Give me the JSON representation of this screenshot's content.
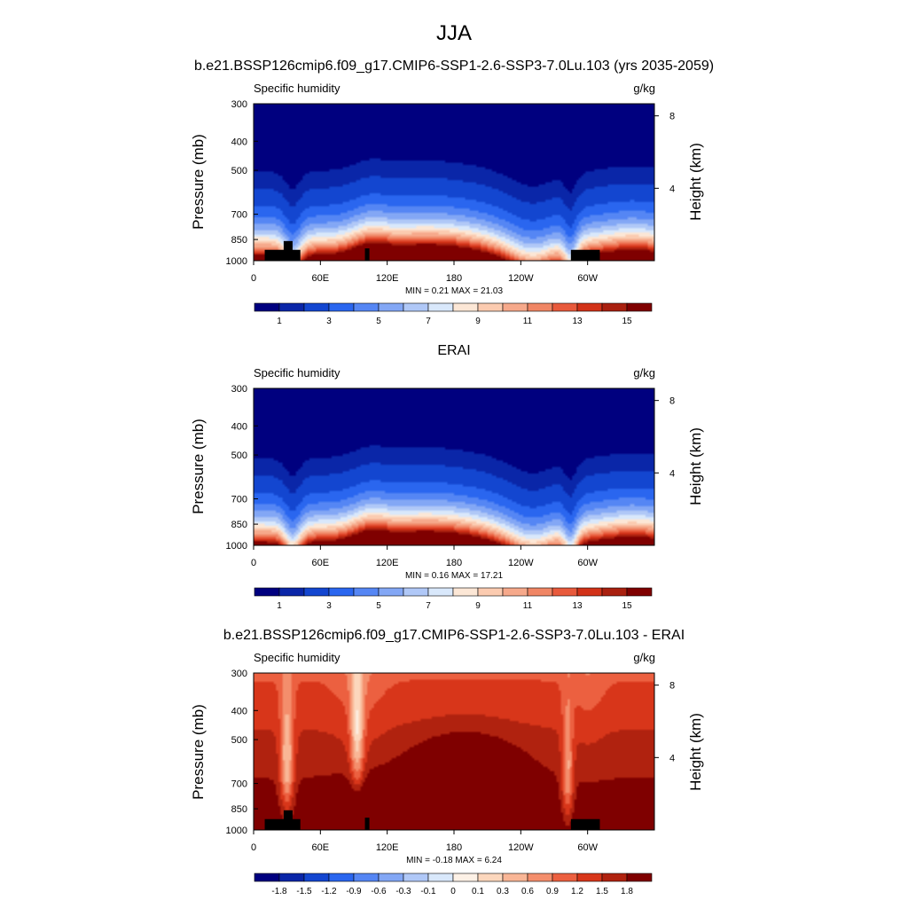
{
  "page": {
    "title": "JJA"
  },
  "colors": {
    "abs_levels": [
      "#00007f",
      "#0a26a8",
      "#1346d0",
      "#2a66ef",
      "#5586f4",
      "#83a7f5",
      "#b0c8f7",
      "#d9e8fb",
      "#fce7d6",
      "#fbcbb0",
      "#f6a98b",
      "#f08665",
      "#e85a3c",
      "#d23218",
      "#a9200f",
      "#7f0000"
    ],
    "diff_levels": [
      "#00007f",
      "#0a26a8",
      "#1346d0",
      "#2a66ef",
      "#5586f4",
      "#83a7f5",
      "#b0c8f7",
      "#d9e8fb",
      "#fdf1e6",
      "#fcd7bd",
      "#f9b696",
      "#f48e6c",
      "#ec6040",
      "#d8361a",
      "#b0220f",
      "#7f0000"
    ],
    "topography": "#000000"
  },
  "chart_data": [
    {
      "type": "heatmap",
      "name": "model",
      "title": "b.e21.BSSP126cmip6.f09_g17.CMIP6-SSP1-2.6-SSP3-7.0Lu.103 (yrs 2035-2059)",
      "left_label": "Specific humidity",
      "right_label": "g/kg",
      "ylabel": "Pressure (mb)",
      "ylabel_right": "Height (km)",
      "y_ticks": [
        "300",
        "400",
        "500",
        "700",
        "850",
        "1000"
      ],
      "y_tick_values": [
        300,
        400,
        500,
        700,
        850,
        1000
      ],
      "y_right_ticks": [
        "8",
        "4"
      ],
      "y_right_tick_values": [
        8,
        4
      ],
      "x_ticks": [
        "0",
        "60E",
        "120E",
        "180",
        "120W",
        "60W"
      ],
      "x_tick_values": [
        0,
        60,
        120,
        180,
        240,
        300
      ],
      "xlim": [
        0,
        360
      ],
      "ylim": [
        300,
        1000
      ],
      "stats": "MIN =   0.21  MAX =  21.03",
      "colorbar_labels": [
        "1",
        "3",
        "5",
        "7",
        "9",
        "11",
        "13",
        "15"
      ],
      "colorbar_label_values": [
        1,
        3,
        5,
        7,
        9,
        11,
        13,
        15
      ],
      "colorbar_palette": "abs_levels",
      "field": "abs",
      "surface_scale": 17.5,
      "topography": [
        {
          "lon_start": 10,
          "lon_end": 42,
          "p_top": 920
        },
        {
          "lon_start": 27,
          "lon_end": 35,
          "p_top": 860
        },
        {
          "lon_start": 100,
          "lon_end": 104,
          "p_top": 910
        },
        {
          "lon_start": 285,
          "lon_end": 311,
          "p_top": 920
        }
      ]
    },
    {
      "type": "heatmap",
      "name": "obs",
      "title": "ERAI",
      "left_label": "Specific humidity",
      "right_label": "g/kg",
      "ylabel": "Pressure (mb)",
      "ylabel_right": "Height (km)",
      "y_ticks": [
        "300",
        "400",
        "500",
        "700",
        "850",
        "1000"
      ],
      "y_tick_values": [
        300,
        400,
        500,
        700,
        850,
        1000
      ],
      "y_right_ticks": [
        "8",
        "4"
      ],
      "y_right_tick_values": [
        8,
        4
      ],
      "x_ticks": [
        "0",
        "60E",
        "120E",
        "180",
        "120W",
        "60W"
      ],
      "x_tick_values": [
        0,
        60,
        120,
        180,
        240,
        300
      ],
      "xlim": [
        0,
        360
      ],
      "ylim": [
        300,
        1000
      ],
      "stats": "MIN =   0.16  MAX =  17.21",
      "colorbar_labels": [
        "1",
        "3",
        "5",
        "7",
        "9",
        "11",
        "13",
        "15"
      ],
      "colorbar_label_values": [
        1,
        3,
        5,
        7,
        9,
        11,
        13,
        15
      ],
      "colorbar_palette": "abs_levels",
      "field": "abs",
      "surface_scale": 16.0,
      "topography": []
    },
    {
      "type": "heatmap",
      "name": "difference",
      "title": "b.e21.BSSP126cmip6.f09_g17.CMIP6-SSP1-2.6-SSP3-7.0Lu.103 - ERAI",
      "left_label": "Specific humidity",
      "right_label": "g/kg",
      "ylabel": "Pressure (mb)",
      "ylabel_right": "Height (km)",
      "y_ticks": [
        "300",
        "400",
        "500",
        "700",
        "850",
        "1000"
      ],
      "y_tick_values": [
        300,
        400,
        500,
        700,
        850,
        1000
      ],
      "y_right_ticks": [
        "8",
        "4"
      ],
      "y_right_tick_values": [
        8,
        4
      ],
      "x_ticks": [
        "0",
        "60E",
        "120E",
        "180",
        "120W",
        "60W"
      ],
      "x_tick_values": [
        0,
        60,
        120,
        180,
        240,
        300
      ],
      "xlim": [
        0,
        360
      ],
      "ylim": [
        300,
        1000
      ],
      "stats": "MIN =  -0.18  MAX =   6.24",
      "colorbar_labels": [
        "-1.8",
        "-1.5",
        "-1.2",
        "-0.9",
        "-0.6",
        "-0.3",
        "-0.1",
        "0",
        "0.1",
        "0.3",
        "0.6",
        "0.9",
        "1.2",
        "1.5",
        "1.8"
      ],
      "colorbar_levels": [
        -1.8,
        -1.5,
        -1.2,
        -0.9,
        -0.6,
        -0.3,
        -0.1,
        0,
        0.1,
        0.3,
        0.6,
        0.9,
        1.2,
        1.5,
        1.8
      ],
      "colorbar_palette": "diff_levels",
      "field": "diff",
      "topography": [
        {
          "lon_start": 10,
          "lon_end": 42,
          "p_top": 920
        },
        {
          "lon_start": 27,
          "lon_end": 35,
          "p_top": 860
        },
        {
          "lon_start": 100,
          "lon_end": 104,
          "p_top": 910
        },
        {
          "lon_start": 285,
          "lon_end": 311,
          "p_top": 920
        }
      ]
    }
  ]
}
